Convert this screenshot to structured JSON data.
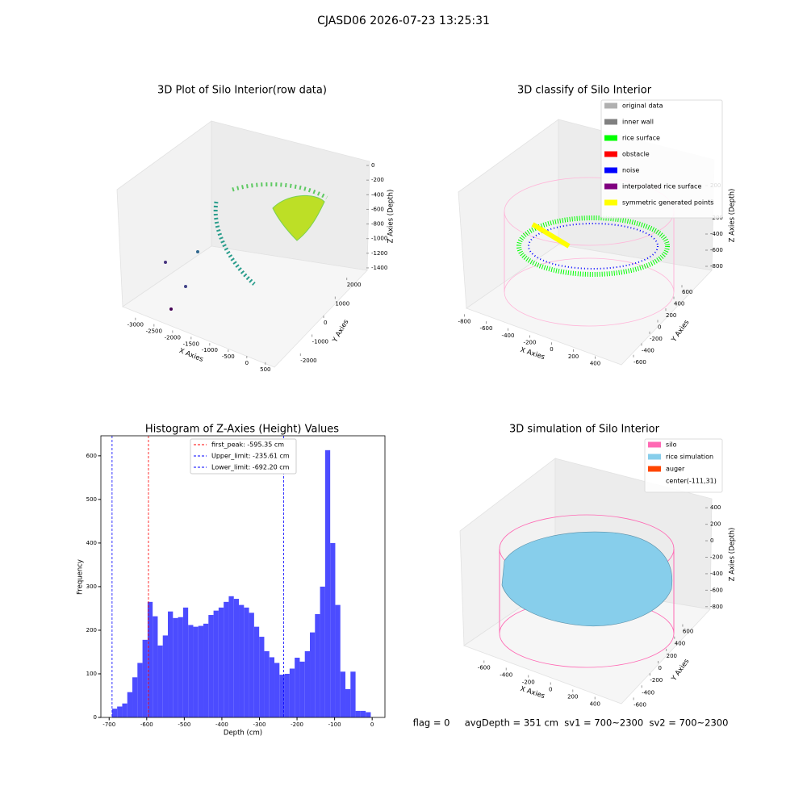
{
  "title": "CJASD06 2026-07-23 13:25:31",
  "annotation": "flag = 0     avgDepth = 351 cm  sv1 = 700~2300  sv2 = 700~2300",
  "chart_data": [
    {
      "type": "scatter3d",
      "title": "3D Plot of Silo Interior(row data)",
      "x_label": "X Axies",
      "y_label": "Y Axies",
      "z_label": "Z Axies (Depth)",
      "xlim": [
        -3300,
        700
      ],
      "xticks": [
        -3000,
        -2500,
        -2000,
        -1500,
        -1000,
        -500,
        0,
        500
      ],
      "ylim": [
        -2300,
        2300
      ],
      "yticks": [
        -2000,
        -1000,
        0,
        1000,
        2000
      ],
      "zlim": [
        -1500,
        100
      ],
      "zticks": [
        0,
        -200,
        -400,
        -600,
        -800,
        -1000,
        -1200,
        -1400
      ]
    },
    {
      "type": "scatter3d",
      "title": "3D classify of Silo Interior",
      "x_label": "X Axies",
      "y_label": "Y Axies",
      "z_label": "Z Axies (Depth)",
      "xlim": [
        -900,
        500
      ],
      "xticks": [
        -800,
        -600,
        -400,
        -200,
        0,
        200,
        400
      ],
      "ylim": [
        -700,
        700
      ],
      "yticks": [
        -600,
        -400,
        -200,
        0,
        200,
        400,
        600
      ],
      "zlim": [
        -900,
        300
      ],
      "zticks": [
        200,
        0,
        -200,
        -400,
        -600,
        -800
      ],
      "legend": [
        {
          "name": "original data",
          "color": "#b0b0b0"
        },
        {
          "name": "inner wall",
          "color": "#808080"
        },
        {
          "name": "rice surface",
          "color": "#00ff00"
        },
        {
          "name": "obstacle",
          "color": "#ff0000"
        },
        {
          "name": "noise",
          "color": "#0000ff"
        },
        {
          "name": "interpolated rice surface",
          "color": "#800080"
        },
        {
          "name": "symmetric generated points",
          "color": "#ffff00"
        }
      ]
    },
    {
      "type": "histogram",
      "title": "Histogram of Z-Axies (Height) Values",
      "x_label": "Depth (cm)",
      "y_label": "Frequency",
      "color": "#4c4cff",
      "xlim": [
        -722,
        34
      ],
      "xticks": [
        -700,
        -600,
        -500,
        -400,
        -300,
        -200,
        -100,
        0
      ],
      "ylim": [
        0,
        646
      ],
      "yticks": [
        0,
        100,
        200,
        300,
        400,
        500,
        600
      ],
      "bins": [
        -692.2,
        -678.7,
        -665.2,
        -651.7,
        -638.2,
        -624.7,
        -611.2,
        -597.7,
        -584.2,
        -570.7,
        -557.2,
        -543.7,
        -530.2,
        -516.7,
        -503.2,
        -489.7,
        -476.2,
        -462.7,
        -449.2,
        -435.7,
        -422.2,
        -408.7,
        -395.2,
        -381.7,
        -368.2,
        -354.7,
        -341.2,
        -327.7,
        -314.2,
        -300.7,
        -287.2,
        -273.7,
        -260.2,
        -246.7,
        -233.2,
        -219.7,
        -206.2,
        -192.7,
        -179.2,
        -165.7,
        -152.2,
        -138.7,
        -125.2,
        -111.7,
        -98.2,
        -84.7,
        -71.2,
        -57.7,
        -44.2,
        -30.7,
        -17.2,
        -3.7
      ],
      "counts": [
        20,
        25,
        32,
        58,
        92,
        125,
        178,
        265,
        232,
        165,
        188,
        243,
        228,
        230,
        252,
        212,
        208,
        210,
        215,
        235,
        245,
        252,
        265,
        278,
        272,
        258,
        252,
        240,
        208,
        185,
        152,
        138,
        125,
        98,
        100,
        112,
        137,
        128,
        152,
        195,
        237,
        300,
        613,
        400,
        258,
        105,
        65,
        105,
        15,
        15,
        12
      ],
      "vlines": [
        {
          "value": -595.35,
          "label": "first_peak: -595.35 cm",
          "color": "#ff0000"
        },
        {
          "value": -235.61,
          "label": "Upper_limit: -235.61 cm",
          "color": "#0000ff"
        },
        {
          "value": -692.2,
          "label": "Lower_limit: -692.20 cm",
          "color": "#0000ff"
        }
      ]
    },
    {
      "type": "surface3d",
      "title": "3D simulation of Silo Interior",
      "x_label": "X Axies",
      "y_label": "Y Axies",
      "z_label": "Z Axies (Depth)",
      "xlim": [
        -700,
        500
      ],
      "xticks": [
        -600,
        -400,
        -200,
        0,
        200,
        400
      ],
      "ylim": [
        -700,
        700
      ],
      "yticks": [
        -600,
        -400,
        -200,
        0,
        200,
        400,
        600
      ],
      "zlim": [
        -900,
        500
      ],
      "zticks": [
        400,
        200,
        0,
        -200,
        -400,
        -600,
        -800
      ],
      "legend": [
        {
          "name": "silo",
          "color": "#ff69b4"
        },
        {
          "name": "rice simulation",
          "color": "#87ceeb"
        },
        {
          "name": "auger",
          "color": "#ff4500"
        },
        {
          "name": "center(-111,31)"
        }
      ]
    }
  ]
}
